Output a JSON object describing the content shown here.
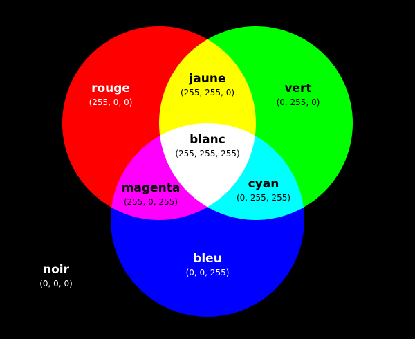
{
  "regions": {
    "red": {
      "name": "rouge",
      "rgb": "(255, 0, 0)",
      "color": "#ff0000"
    },
    "green": {
      "name": "vert",
      "rgb": "(0, 255, 0)",
      "color": "#00ff00"
    },
    "blue": {
      "name": "bleu",
      "rgb": "(0, 0, 255)",
      "color": "#0000ff"
    },
    "yellow": {
      "name": "jaune",
      "rgb": "(255, 255, 0)",
      "color": "#ffff00"
    },
    "magenta": {
      "name": "magenta",
      "rgb": "(255, 0, 255)",
      "color": "#ff00ff"
    },
    "cyan": {
      "name": "cyan",
      "rgb": "(0, 255, 255)",
      "color": "#00ffff"
    },
    "white": {
      "name": "blanc",
      "rgb": "(255, 255, 255)",
      "color": "#ffffff"
    },
    "black": {
      "name": "noir",
      "rgb": "(0, 0, 0)",
      "color": "#000000"
    }
  }
}
